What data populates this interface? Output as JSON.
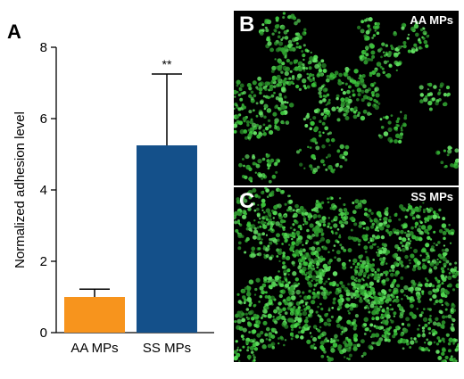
{
  "figure": {
    "panel_a_letter": "A",
    "panel_b_letter": "B",
    "panel_c_letter": "C",
    "panel_b_caption": "AA MPs",
    "panel_c_caption": "SS MPs"
  },
  "chart_data": {
    "type": "bar",
    "categories": [
      "AA MPs",
      "SS MPs"
    ],
    "values": [
      1.0,
      5.25
    ],
    "error_upper": [
      0.22,
      2.0
    ],
    "bar_colors": [
      "#F7941D",
      "#14508A"
    ],
    "annotations": [
      "",
      "**"
    ],
    "title": "",
    "xlabel": "",
    "ylabel": "Normalized adhesion level",
    "ylim": [
      0,
      8
    ],
    "yticks": [
      0,
      2,
      4,
      6,
      8
    ],
    "grid": false,
    "legend": "none"
  },
  "micrographs": {
    "fluorescence_color": "#39C239",
    "panel_b_cell_density": "sparse",
    "panel_c_cell_density": "dense"
  }
}
